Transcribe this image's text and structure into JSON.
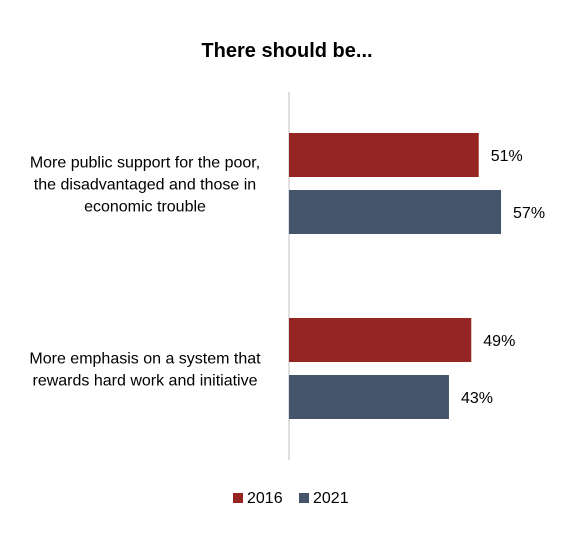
{
  "chart_data": {
    "type": "bar",
    "orientation": "horizontal",
    "title": "There should be...",
    "categories": [
      [
        "More public support for the poor,",
        "the disadvantaged and those in",
        "economic trouble"
      ],
      [
        "More emphasis on a system that",
        "rewards hard work and initiative"
      ]
    ],
    "series": [
      {
        "name": "2016",
        "color": "#952523",
        "values": [
          51,
          49
        ],
        "labels": [
          "51%",
          "49%"
        ]
      },
      {
        "name": "2021",
        "color": "#44546A",
        "values": [
          57,
          43
        ],
        "labels": [
          "57%",
          "43%"
        ]
      }
    ],
    "xlim": [
      0,
      100
    ],
    "grid": false,
    "legend": "bottom"
  }
}
